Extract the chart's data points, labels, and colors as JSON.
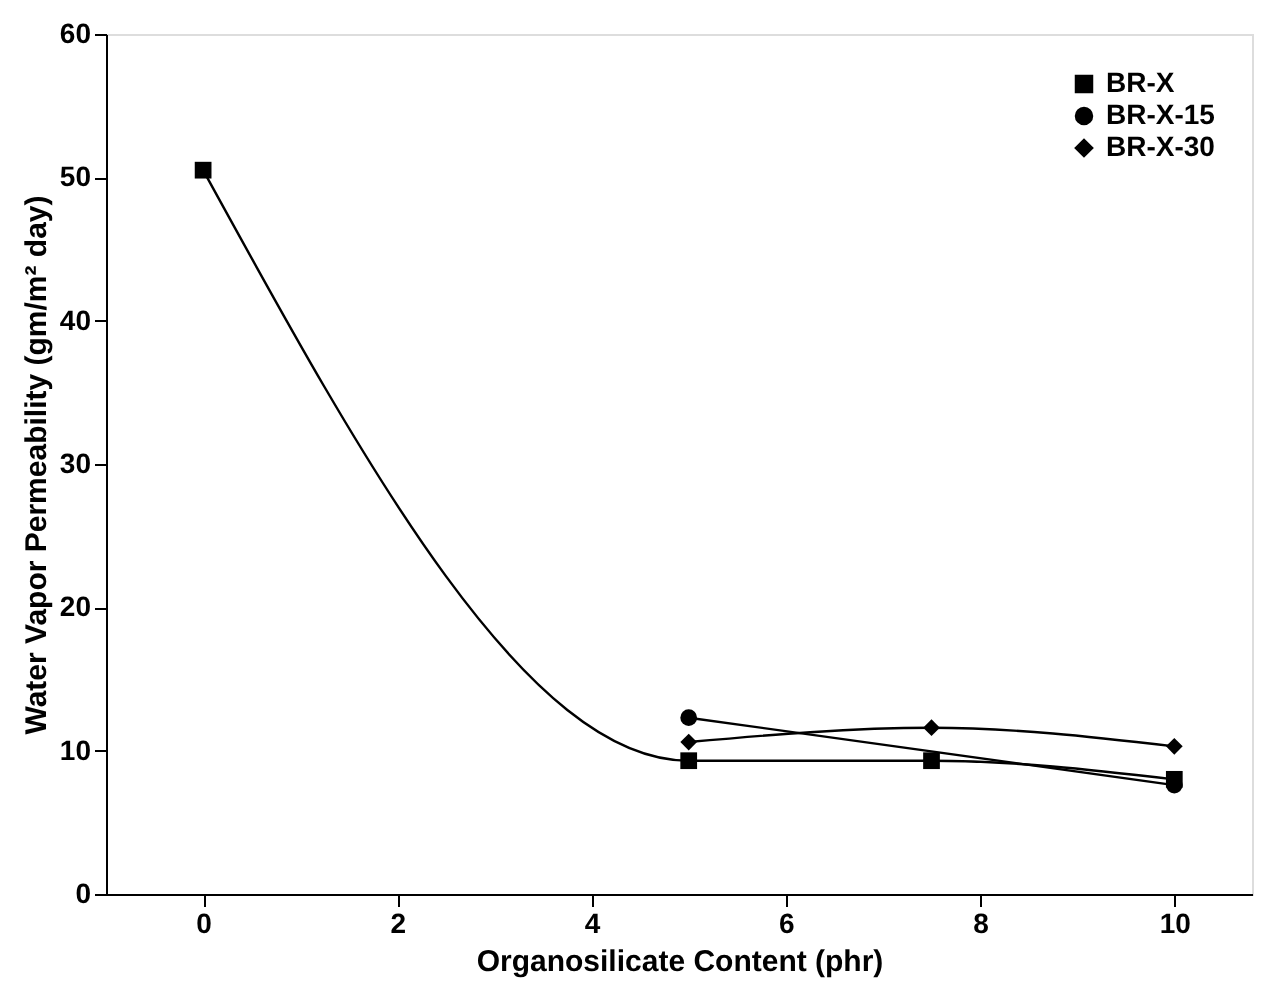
{
  "chart_data": {
    "type": "line",
    "xlabel": "Organosilicate Content (phr)",
    "ylabel": "Water Vapor Permeability (gm/m² day)",
    "xlim": [
      -1,
      10.8
    ],
    "xticks": [
      0,
      2,
      4,
      6,
      8,
      10
    ],
    "ylim": [
      0,
      60
    ],
    "yticks": [
      0,
      10,
      20,
      30,
      40,
      50,
      60
    ],
    "grid": false,
    "legend": "top right",
    "line_style": "solid",
    "series": [
      {
        "name": "BR-X",
        "color": "#000000",
        "marker": "square",
        "x": [
          0,
          5,
          7.5,
          10
        ],
        "values": [
          50.5,
          9.3,
          9.3,
          8.0
        ]
      },
      {
        "name": "BR-X-15",
        "color": "#000000",
        "marker": "circle",
        "x": [
          5,
          7.5,
          10
        ],
        "values": [
          12.3,
          null,
          7.6
        ]
      },
      {
        "name": "BR-X-30",
        "color": "#000000",
        "marker": "diamond",
        "x": [
          5,
          7.5,
          10
        ],
        "values": [
          10.6,
          11.6,
          10.3
        ]
      }
    ]
  }
}
